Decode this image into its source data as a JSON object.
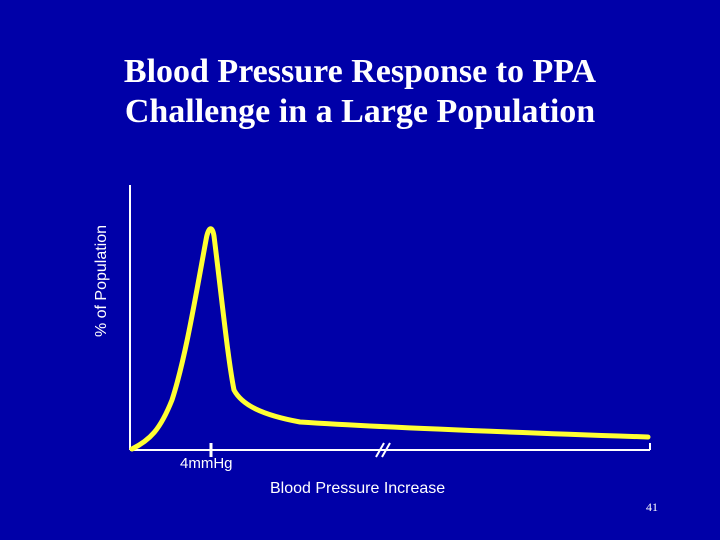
{
  "slide": {
    "number": "41"
  },
  "chart_data": {
    "type": "line",
    "title": "Blood Pressure Response to PPA Challenge in a Large Population",
    "title_lines": [
      "Blood Pressure Response to PPA",
      "Challenge in a Large Population"
    ],
    "xlabel": "Blood Pressure Increase",
    "ylabel": "% of Population",
    "x_tick_labels": [
      "4mmHg"
    ],
    "axis_break": true,
    "grid": false,
    "colors": {
      "background": "#0000a8",
      "line": "#ffff33",
      "axes": "#ffffff",
      "text": "#ffffff"
    }
  }
}
